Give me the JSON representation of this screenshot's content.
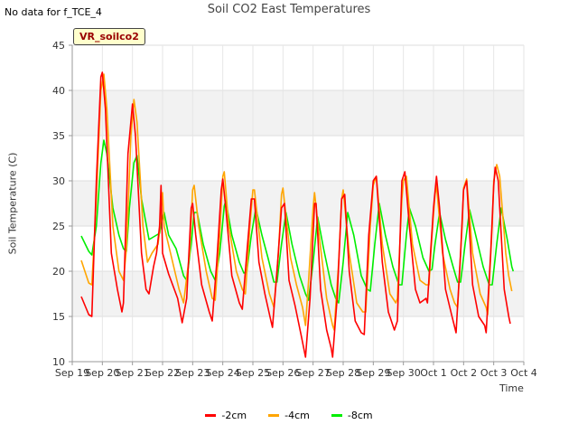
{
  "header": {
    "note": "No data for f_TCE_4",
    "badge": "VR_soilco2"
  },
  "chart_data": {
    "type": "line",
    "title": "Soil CO2 East Temperatures",
    "xlabel": "Time",
    "ylabel": "Soil Temperature (C)",
    "xlim": [
      0,
      15
    ],
    "ylim": [
      10,
      45
    ],
    "yticks": [
      10,
      15,
      20,
      25,
      30,
      35,
      40,
      45
    ],
    "xtick_labels": [
      "Sep 19",
      "Sep 20",
      "Sep 21",
      "Sep 22",
      "Sep 23",
      "Sep 24",
      "Sep 25",
      "Sep 26",
      "Sep 27",
      "Sep 28",
      "Sep 29",
      "Sep 30",
      "Oct 1",
      "Oct 2",
      "Oct 3",
      "Oct 4"
    ],
    "grid": true,
    "legend_position": "bottom-center",
    "series": [
      {
        "name": "-2cm",
        "color": "#ff0000",
        "points": [
          [
            0.3,
            17.2
          ],
          [
            0.55,
            15.2
          ],
          [
            0.65,
            15.0
          ],
          [
            0.8,
            30
          ],
          [
            0.95,
            41.5
          ],
          [
            1.0,
            42.0
          ],
          [
            1.1,
            38
          ],
          [
            1.3,
            22
          ],
          [
            1.5,
            18.0
          ],
          [
            1.65,
            15.5
          ],
          [
            1.7,
            16.5
          ],
          [
            1.85,
            33
          ],
          [
            2.0,
            38.5
          ],
          [
            2.1,
            35
          ],
          [
            2.3,
            22
          ],
          [
            2.45,
            18.0
          ],
          [
            2.55,
            17.5
          ],
          [
            2.7,
            20.5
          ],
          [
            2.8,
            22
          ],
          [
            2.9,
            25
          ],
          [
            2.95,
            29.5
          ],
          [
            3.0,
            22
          ],
          [
            3.2,
            19.7
          ],
          [
            3.5,
            17.0
          ],
          [
            3.65,
            14.3
          ],
          [
            3.8,
            17
          ],
          [
            3.95,
            27.0
          ],
          [
            4.0,
            27.5
          ],
          [
            4.1,
            24
          ],
          [
            4.3,
            18.5
          ],
          [
            4.55,
            15.5
          ],
          [
            4.65,
            14.5
          ],
          [
            4.8,
            21
          ],
          [
            4.95,
            29.0
          ],
          [
            5.0,
            30.2
          ],
          [
            5.1,
            27
          ],
          [
            5.3,
            19.5
          ],
          [
            5.55,
            16.5
          ],
          [
            5.65,
            15.8
          ],
          [
            5.8,
            22
          ],
          [
            5.95,
            28.0
          ],
          [
            6.05,
            28.0
          ],
          [
            6.2,
            21
          ],
          [
            6.4,
            17.5
          ],
          [
            6.6,
            14.5
          ],
          [
            6.65,
            13.8
          ],
          [
            6.8,
            20
          ],
          [
            6.95,
            27.0
          ],
          [
            7.05,
            27.5
          ],
          [
            7.2,
            19
          ],
          [
            7.4,
            16.2
          ],
          [
            7.6,
            13.0
          ],
          [
            7.75,
            10.5
          ],
          [
            7.9,
            17
          ],
          [
            8.05,
            27.5
          ],
          [
            8.1,
            27.5
          ],
          [
            8.25,
            18
          ],
          [
            8.45,
            13.5
          ],
          [
            8.6,
            11.5
          ],
          [
            8.65,
            10.5
          ],
          [
            8.8,
            17
          ],
          [
            8.95,
            28.0
          ],
          [
            9.05,
            28.5
          ],
          [
            9.2,
            20
          ],
          [
            9.4,
            14.5
          ],
          [
            9.6,
            13.2
          ],
          [
            9.7,
            13.0
          ],
          [
            9.85,
            24
          ],
          [
            10.0,
            30.0
          ],
          [
            10.1,
            30.5
          ],
          [
            10.3,
            21
          ],
          [
            10.5,
            15.5
          ],
          [
            10.7,
            13.5
          ],
          [
            10.8,
            14.5
          ],
          [
            10.95,
            30.0
          ],
          [
            11.05,
            31.0
          ],
          [
            11.2,
            25
          ],
          [
            11.4,
            18
          ],
          [
            11.55,
            16.5
          ],
          [
            11.75,
            17.0
          ],
          [
            11.8,
            16.5
          ],
          [
            11.9,
            22
          ],
          [
            12.0,
            27.0
          ],
          [
            12.1,
            30.5
          ],
          [
            12.2,
            27
          ],
          [
            12.4,
            18
          ],
          [
            12.6,
            15.2
          ],
          [
            12.75,
            13.2
          ],
          [
            12.9,
            22
          ],
          [
            13.0,
            29.0
          ],
          [
            13.1,
            30.0
          ],
          [
            13.3,
            18.5
          ],
          [
            13.5,
            15.0
          ],
          [
            13.7,
            14.0
          ],
          [
            13.75,
            13.2
          ],
          [
            13.9,
            22
          ],
          [
            14.0,
            29.5
          ],
          [
            14.05,
            31.5
          ],
          [
            14.15,
            30
          ],
          [
            14.35,
            18
          ],
          [
            14.5,
            15.0
          ],
          [
            14.55,
            14.2
          ]
        ]
      },
      {
        "name": "-4cm",
        "color": "#ffa500",
        "points": [
          [
            0.3,
            21.2
          ],
          [
            0.55,
            18.7
          ],
          [
            0.65,
            18.5
          ],
          [
            0.8,
            28
          ],
          [
            0.95,
            40.0
          ],
          [
            1.05,
            41.8
          ],
          [
            1.15,
            38
          ],
          [
            1.35,
            25
          ],
          [
            1.55,
            20.0
          ],
          [
            1.7,
            19.0
          ],
          [
            1.8,
            22.5
          ],
          [
            1.95,
            35
          ],
          [
            2.05,
            39.0
          ],
          [
            2.15,
            36.5
          ],
          [
            2.35,
            25
          ],
          [
            2.5,
            21.0
          ],
          [
            2.65,
            22.0
          ],
          [
            2.85,
            23.0
          ],
          [
            2.9,
            24.5
          ],
          [
            3.0,
            28.7
          ],
          [
            3.05,
            25
          ],
          [
            3.3,
            21.5
          ],
          [
            3.55,
            18.0
          ],
          [
            3.7,
            16.5
          ],
          [
            3.9,
            22
          ],
          [
            4.0,
            29.0
          ],
          [
            4.05,
            29.5
          ],
          [
            4.2,
            25
          ],
          [
            4.45,
            20.0
          ],
          [
            4.65,
            17.0
          ],
          [
            4.75,
            16.8
          ],
          [
            4.9,
            24
          ],
          [
            5.0,
            30.5
          ],
          [
            5.05,
            31.0
          ],
          [
            5.2,
            25
          ],
          [
            5.45,
            20.0
          ],
          [
            5.65,
            18.0
          ],
          [
            5.75,
            17.5
          ],
          [
            5.9,
            25
          ],
          [
            6.0,
            29.0
          ],
          [
            6.05,
            29.0
          ],
          [
            6.3,
            21.5
          ],
          [
            6.55,
            17.5
          ],
          [
            6.7,
            16.0
          ],
          [
            6.85,
            22
          ],
          [
            6.95,
            28.5
          ],
          [
            7.0,
            29.2
          ],
          [
            7.25,
            21.5
          ],
          [
            7.45,
            18.5
          ],
          [
            7.65,
            16.0
          ],
          [
            7.75,
            14.0
          ],
          [
            7.85,
            19
          ],
          [
            8.0,
            27
          ],
          [
            8.05,
            28.7
          ],
          [
            8.2,
            24
          ],
          [
            8.45,
            17.0
          ],
          [
            8.65,
            14.0
          ],
          [
            8.7,
            13.5
          ],
          [
            8.85,
            21
          ],
          [
            8.95,
            28.0
          ],
          [
            9.0,
            29.0
          ],
          [
            9.2,
            22
          ],
          [
            9.45,
            16.5
          ],
          [
            9.65,
            15.5
          ],
          [
            9.75,
            15.5
          ],
          [
            9.9,
            25
          ],
          [
            10.0,
            29.5
          ],
          [
            10.1,
            30.5
          ],
          [
            10.3,
            23
          ],
          [
            10.55,
            17.5
          ],
          [
            10.75,
            16.5
          ],
          [
            10.8,
            17.0
          ],
          [
            10.95,
            28
          ],
          [
            11.0,
            30.0
          ],
          [
            11.1,
            30.5
          ],
          [
            11.3,
            23
          ],
          [
            11.55,
            19.0
          ],
          [
            11.75,
            18.5
          ],
          [
            11.85,
            18.5
          ],
          [
            11.95,
            24
          ],
          [
            12.05,
            28.5
          ],
          [
            12.1,
            29.5
          ],
          [
            12.3,
            22
          ],
          [
            12.55,
            18.0
          ],
          [
            12.7,
            16.5
          ],
          [
            12.8,
            16.0
          ],
          [
            12.95,
            25
          ],
          [
            13.0,
            29.2
          ],
          [
            13.1,
            30.2
          ],
          [
            13.3,
            22
          ],
          [
            13.55,
            17.5
          ],
          [
            13.75,
            16.0
          ],
          [
            13.8,
            15.2
          ],
          [
            13.95,
            25
          ],
          [
            14.0,
            30.0
          ],
          [
            14.1,
            31.8
          ],
          [
            14.2,
            30.5
          ],
          [
            14.4,
            22
          ],
          [
            14.5,
            19.5
          ],
          [
            14.6,
            17.8
          ]
        ]
      },
      {
        "name": "-8cm",
        "color": "#00ee00",
        "points": [
          [
            0.3,
            23.9
          ],
          [
            0.55,
            22.2
          ],
          [
            0.65,
            21.8
          ],
          [
            0.8,
            25
          ],
          [
            0.95,
            32
          ],
          [
            1.05,
            34.5
          ],
          [
            1.15,
            33
          ],
          [
            1.35,
            27
          ],
          [
            1.55,
            24.0
          ],
          [
            1.7,
            22.5
          ],
          [
            1.8,
            22.2
          ],
          [
            1.9,
            27
          ],
          [
            2.05,
            32
          ],
          [
            2.15,
            32.8
          ],
          [
            2.3,
            28
          ],
          [
            2.55,
            23.5
          ],
          [
            2.7,
            23.8
          ],
          [
            2.9,
            24.2
          ],
          [
            3.0,
            26.0
          ],
          [
            3.05,
            26.5
          ],
          [
            3.2,
            24
          ],
          [
            3.45,
            22.5
          ],
          [
            3.7,
            19.5
          ],
          [
            3.8,
            19.0
          ],
          [
            3.95,
            23
          ],
          [
            4.05,
            26.5
          ],
          [
            4.15,
            26.5
          ],
          [
            4.35,
            23
          ],
          [
            4.6,
            20.0
          ],
          [
            4.75,
            19.0
          ],
          [
            4.9,
            22
          ],
          [
            5.05,
            27.2
          ],
          [
            5.1,
            27.8
          ],
          [
            5.3,
            24
          ],
          [
            5.55,
            21.0
          ],
          [
            5.7,
            19.8
          ],
          [
            5.8,
            20.0
          ],
          [
            5.95,
            24
          ],
          [
            6.1,
            27.0
          ],
          [
            6.3,
            24
          ],
          [
            6.5,
            21.5
          ],
          [
            6.7,
            18.8
          ],
          [
            6.8,
            18.8
          ],
          [
            6.95,
            23
          ],
          [
            7.1,
            26.5
          ],
          [
            7.3,
            23
          ],
          [
            7.55,
            19.5
          ],
          [
            7.75,
            17.5
          ],
          [
            7.85,
            16.8
          ],
          [
            8.0,
            21
          ],
          [
            8.15,
            26.0
          ],
          [
            8.35,
            22.5
          ],
          [
            8.6,
            18.5
          ],
          [
            8.75,
            17.0
          ],
          [
            8.85,
            16.5
          ],
          [
            9.0,
            21
          ],
          [
            9.15,
            26.5
          ],
          [
            9.35,
            24
          ],
          [
            9.6,
            19.5
          ],
          [
            9.8,
            18.0
          ],
          [
            9.9,
            17.8
          ],
          [
            10.05,
            23
          ],
          [
            10.2,
            27.5
          ],
          [
            10.4,
            24
          ],
          [
            10.65,
            20.5
          ],
          [
            10.85,
            18.5
          ],
          [
            10.95,
            18.5
          ],
          [
            11.1,
            24
          ],
          [
            11.2,
            27.0
          ],
          [
            11.4,
            25
          ],
          [
            11.65,
            21.5
          ],
          [
            11.85,
            20.0
          ],
          [
            11.95,
            20.2
          ],
          [
            12.05,
            23
          ],
          [
            12.2,
            26.5
          ],
          [
            12.4,
            23.5
          ],
          [
            12.65,
            20.5
          ],
          [
            12.8,
            18.8
          ],
          [
            12.9,
            18.8
          ],
          [
            13.05,
            23
          ],
          [
            13.2,
            26.8
          ],
          [
            13.4,
            24
          ],
          [
            13.65,
            20.5
          ],
          [
            13.85,
            18.5
          ],
          [
            13.95,
            18.5
          ],
          [
            14.1,
            23
          ],
          [
            14.25,
            27.0
          ],
          [
            14.45,
            23.5
          ],
          [
            14.6,
            20.5
          ],
          [
            14.65,
            20.0
          ]
        ]
      }
    ]
  }
}
